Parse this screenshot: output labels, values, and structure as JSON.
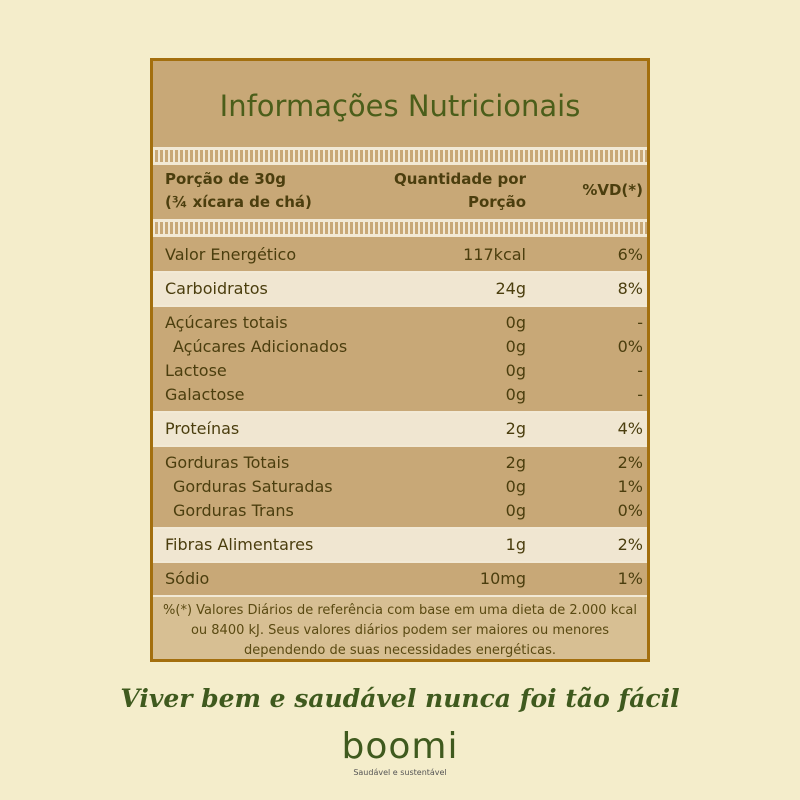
{
  "title": "Informações Nutricionais",
  "header": {
    "portion": "Porção de 30g",
    "portion_detail": "(¾ xícara de chá)",
    "quantity_line1": "Quantidade por",
    "quantity_line2": "Porção",
    "daily_value": "%VD(*)"
  },
  "groups": [
    {
      "rows": [
        {
          "label": "Valor Energético",
          "quantity": "117kcal",
          "daily_value": "6%"
        }
      ]
    },
    {
      "rows": [
        {
          "label": "Carboidratos",
          "quantity": "24g",
          "daily_value": "8%"
        }
      ]
    },
    {
      "rows": [
        {
          "label": "Açúcares totais",
          "quantity": "0g",
          "daily_value": "-"
        },
        {
          "label": "Açúcares Adicionados",
          "quantity": "0g",
          "daily_value": "0%",
          "indent": true
        },
        {
          "label": "Lactose",
          "quantity": "0g",
          "daily_value": "-"
        },
        {
          "label": "Galactose",
          "quantity": "0g",
          "daily_value": "-"
        }
      ]
    },
    {
      "rows": [
        {
          "label": "Proteínas",
          "quantity": "2g",
          "daily_value": "4%"
        }
      ]
    },
    {
      "rows": [
        {
          "label": "Gorduras Totais",
          "quantity": "2g",
          "daily_value": "2%"
        },
        {
          "label": "Gorduras Saturadas",
          "quantity": "0g",
          "daily_value": "1%",
          "indent": true
        },
        {
          "label": "Gorduras Trans",
          "quantity": "0g",
          "daily_value": "0%",
          "indent": true
        }
      ]
    },
    {
      "rows": [
        {
          "label": "Fibras Alimentares",
          "quantity": "1g",
          "daily_value": "2%"
        }
      ]
    },
    {
      "rows": [
        {
          "label": "Sódio",
          "quantity": "10mg",
          "daily_value": "1%"
        }
      ]
    }
  ],
  "footnote": "%(*) Valores Diários de referência com base em uma dieta de 2.000 kcal ou 8400 kJ. Seus valores diários podem ser maiores ou menores dependendo de suas necessidades energéticas.",
  "slogan": "Viver bem e saudável nunca foi tão fácil",
  "brand": "boomi",
  "tagline": "Saudável e sustentável"
}
